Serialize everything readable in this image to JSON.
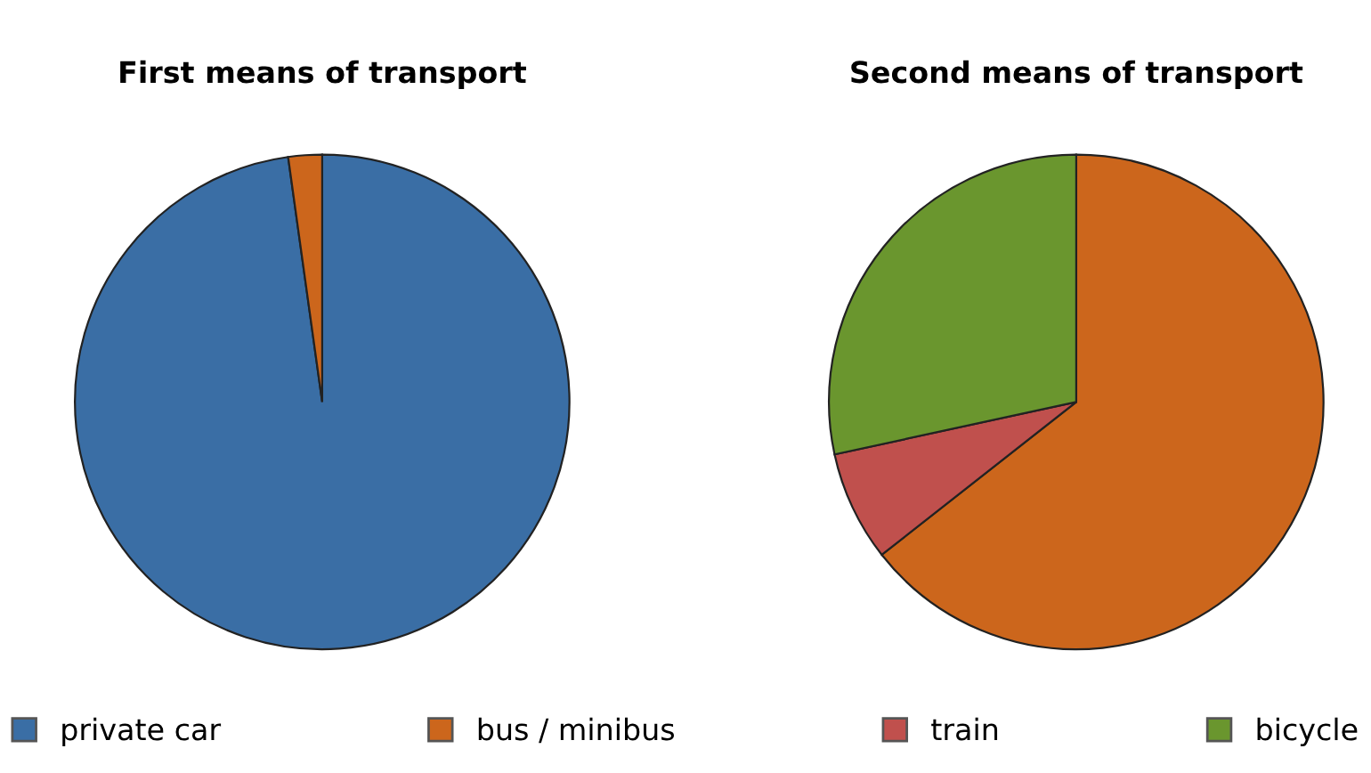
{
  "chart_data": [
    {
      "type": "pie",
      "title": "First means of transport",
      "categories": [
        "private car",
        "bus / minibus",
        "train",
        "bicycle"
      ],
      "values": [
        97.8,
        2.2,
        0,
        0
      ],
      "colors": [
        "#3a6ea5",
        "#cc661c",
        "#c0504d",
        "#6a962e"
      ],
      "legend": "bottom"
    },
    {
      "type": "pie",
      "title": "Second means of transport",
      "categories": [
        null,
        null,
        null
      ],
      "values": [
        64.4,
        7.2,
        28.4
      ],
      "colors": [
        "#cc661c",
        "#c0504d",
        "#6a962e"
      ]
    }
  ]
}
